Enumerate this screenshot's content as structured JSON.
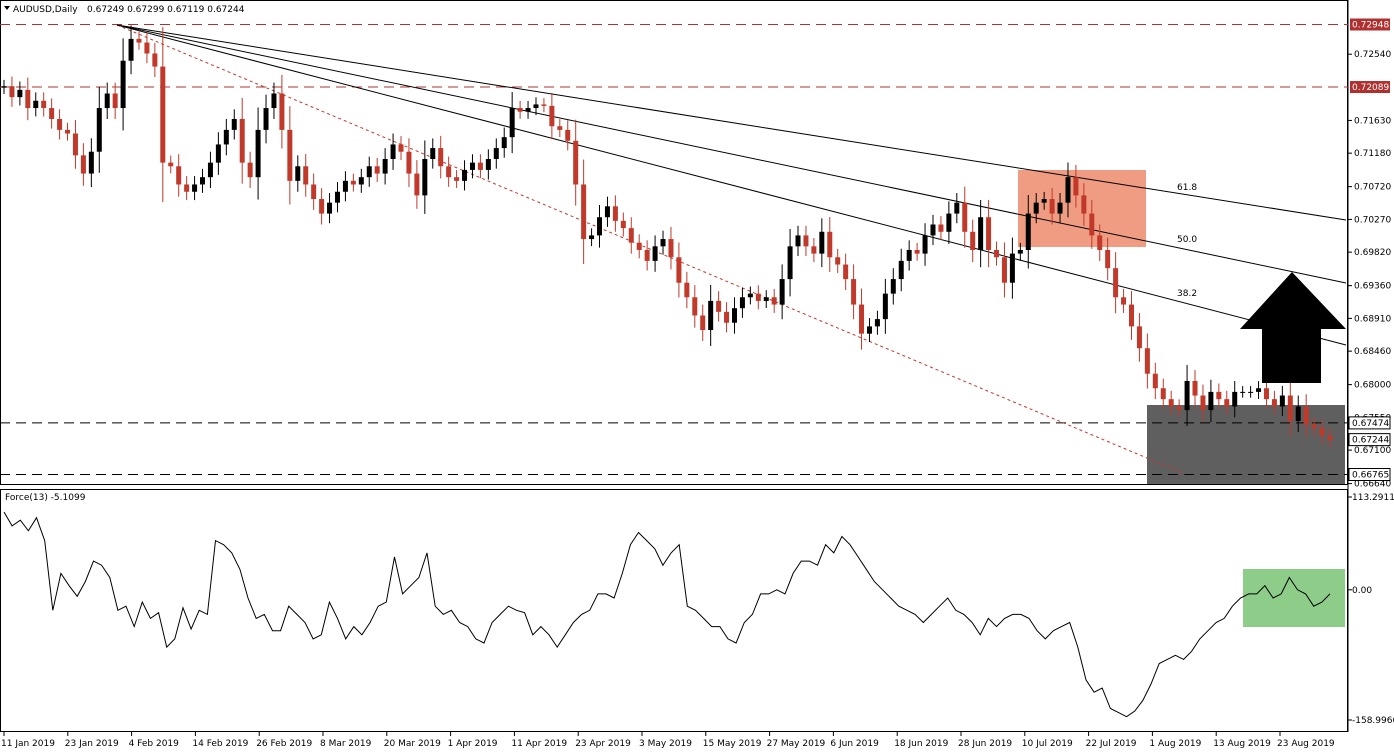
{
  "header": {
    "symbol": "AUDUSD,Daily",
    "ohlc": "0.67249 0.67299 0.67119 0.67244",
    "indicator": "Force(13) -5.1099"
  },
  "colors": {
    "bull": "#000000",
    "bear": "#c0392b",
    "resistance_line": "#b03030",
    "fib_box": "#ec8b6c",
    "gray_box": "#5f5f5f",
    "force_box": "#8ecc8a",
    "arrow": "#000000"
  },
  "chart_data": [
    {
      "type": "candlestick",
      "title": "AUDUSD,Daily",
      "y_range": [
        0.6664,
        0.7323
      ],
      "y_ticks": [
        "0.72948",
        "0.72540",
        "0.72089",
        "0.71630",
        "0.71180",
        "0.70720",
        "0.70270",
        "0.69820",
        "0.69360",
        "0.68910",
        "0.68460",
        "0.68000",
        "0.67550",
        "0.67474",
        "0.67244",
        "0.67100",
        "0.66765",
        "0.66640"
      ],
      "price_tags": [
        {
          "value": "0.72948",
          "style": "red"
        },
        {
          "value": "0.72089",
          "style": "red"
        },
        {
          "value": "0.67474",
          "style": "boxed"
        },
        {
          "value": "0.67244",
          "style": "boxed"
        },
        {
          "value": "0.66765",
          "style": "boxed"
        }
      ],
      "horizontal_levels": [
        {
          "value": 0.72948,
          "style": "red-dashed"
        },
        {
          "value": 0.72089,
          "style": "red-dashed"
        },
        {
          "value": 0.67474,
          "style": "black-dashed"
        },
        {
          "value": 0.66765,
          "style": "black-dashed"
        }
      ],
      "x_labels": [
        "11 Jan 2019",
        "23 Jan 2019",
        "4 Feb 2019",
        "14 Feb 2019",
        "26 Feb 2019",
        "8 Mar 2019",
        "20 Mar 2019",
        "1 Apr 2019",
        "11 Apr 2019",
        "23 Apr 2019",
        "3 May 2019",
        "15 May 2019",
        "27 May 2019",
        "6 Jun 2019",
        "18 Jun 2019",
        "28 Jun 2019",
        "10 Jul 2019",
        "22 Jul 2019",
        "1 Aug 2019",
        "13 Aug 2019",
        "23 Aug 2019"
      ],
      "fib_labels": [
        "61.8",
        "50.0",
        "38.2"
      ],
      "close": [
        0.721,
        0.7195,
        0.7205,
        0.718,
        0.719,
        0.718,
        0.7165,
        0.715,
        0.7145,
        0.7115,
        0.709,
        0.712,
        0.718,
        0.72,
        0.718,
        0.7245,
        0.7275,
        0.727,
        0.7255,
        0.7237,
        0.7105,
        0.71,
        0.7075,
        0.7065,
        0.7075,
        0.7085,
        0.7105,
        0.713,
        0.715,
        0.7165,
        0.7105,
        0.7085,
        0.715,
        0.718,
        0.72,
        0.715,
        0.708,
        0.71,
        0.7075,
        0.7055,
        0.7035,
        0.705,
        0.7065,
        0.708,
        0.7075,
        0.7085,
        0.71,
        0.709,
        0.711,
        0.713,
        0.712,
        0.709,
        0.706,
        0.711,
        0.7125,
        0.71,
        0.7085,
        0.708,
        0.7095,
        0.7105,
        0.7095,
        0.711,
        0.7125,
        0.714,
        0.718,
        0.7175,
        0.718,
        0.7185,
        0.7183,
        0.7155,
        0.715,
        0.7135,
        0.7075,
        0.7,
        0.7005,
        0.703,
        0.7045,
        0.7025,
        0.7015,
        0.6995,
        0.6985,
        0.697,
        0.699,
        0.7,
        0.6975,
        0.694,
        0.692,
        0.6895,
        0.6875,
        0.6915,
        0.69,
        0.6885,
        0.6905,
        0.692,
        0.6925,
        0.6915,
        0.692,
        0.691,
        0.6945,
        0.699,
        0.7005,
        0.699,
        0.698,
        0.701,
        0.6975,
        0.6965,
        0.6945,
        0.691,
        0.687,
        0.688,
        0.689,
        0.6925,
        0.6945,
        0.697,
        0.6985,
        0.698,
        0.7005,
        0.702,
        0.701,
        0.7035,
        0.705,
        0.701,
        0.6985,
        0.703,
        0.6985,
        0.6975,
        0.694,
        0.698,
        0.6985,
        0.7035,
        0.705,
        0.7055,
        0.7035,
        0.705,
        0.7085,
        0.706,
        0.7035,
        0.7005,
        0.6985,
        0.696,
        0.692,
        0.691,
        0.688,
        0.685,
        0.6815,
        0.6795,
        0.678,
        0.677,
        0.6765,
        0.6805,
        0.6785,
        0.6765,
        0.679,
        0.678,
        0.677,
        0.679,
        0.679,
        0.679,
        0.6795,
        0.678,
        0.677,
        0.6785,
        0.675,
        0.677,
        0.6745,
        0.674,
        0.673,
        0.6724
      ],
      "highs_lows": "approximate"
    },
    {
      "type": "line",
      "title": "Force(13) -5.1099",
      "y_range": [
        -158.9966,
        113.2911
      ],
      "y_ticks": [
        "113.2911",
        "0.00",
        "-158.9966"
      ],
      "values": [
        95,
        78,
        85,
        72,
        88,
        60,
        -25,
        20,
        5,
        -8,
        10,
        35,
        30,
        15,
        -25,
        -20,
        -45,
        -15,
        -35,
        -28,
        -70,
        -60,
        -22,
        -48,
        -25,
        -30,
        60,
        55,
        45,
        25,
        -10,
        -35,
        -30,
        -50,
        -50,
        -20,
        -30,
        -40,
        -60,
        -55,
        -15,
        -35,
        -60,
        -45,
        -55,
        -40,
        -20,
        -15,
        40,
        -5,
        5,
        15,
        45,
        -20,
        -30,
        -25,
        -40,
        -45,
        -60,
        -65,
        -40,
        -30,
        -20,
        -25,
        -28,
        -55,
        -45,
        -55,
        -70,
        -55,
        -40,
        -30,
        -25,
        -5,
        -5,
        -10,
        20,
        55,
        70,
        60,
        50,
        30,
        45,
        55,
        -20,
        -25,
        -35,
        -45,
        -45,
        -60,
        -65,
        -40,
        -30,
        -5,
        -5,
        0,
        -5,
        20,
        35,
        35,
        30,
        55,
        45,
        65,
        55,
        40,
        25,
        10,
        0,
        -10,
        -20,
        -25,
        -30,
        -40,
        -30,
        -20,
        -10,
        -25,
        -30,
        -40,
        -55,
        -35,
        -45,
        -35,
        -30,
        -30,
        -35,
        -50,
        -60,
        -50,
        -45,
        -40,
        -70,
        -110,
        -125,
        -120,
        -145,
        -150,
        -155,
        -148,
        -135,
        -115,
        -90,
        -85,
        -80,
        -85,
        -75,
        -60,
        -50,
        -40,
        -35,
        -20,
        -10,
        -5,
        -5,
        5,
        -10,
        -5,
        15,
        0,
        -5,
        -20,
        -15,
        -5
      ],
      "highlight_box": "green"
    }
  ]
}
